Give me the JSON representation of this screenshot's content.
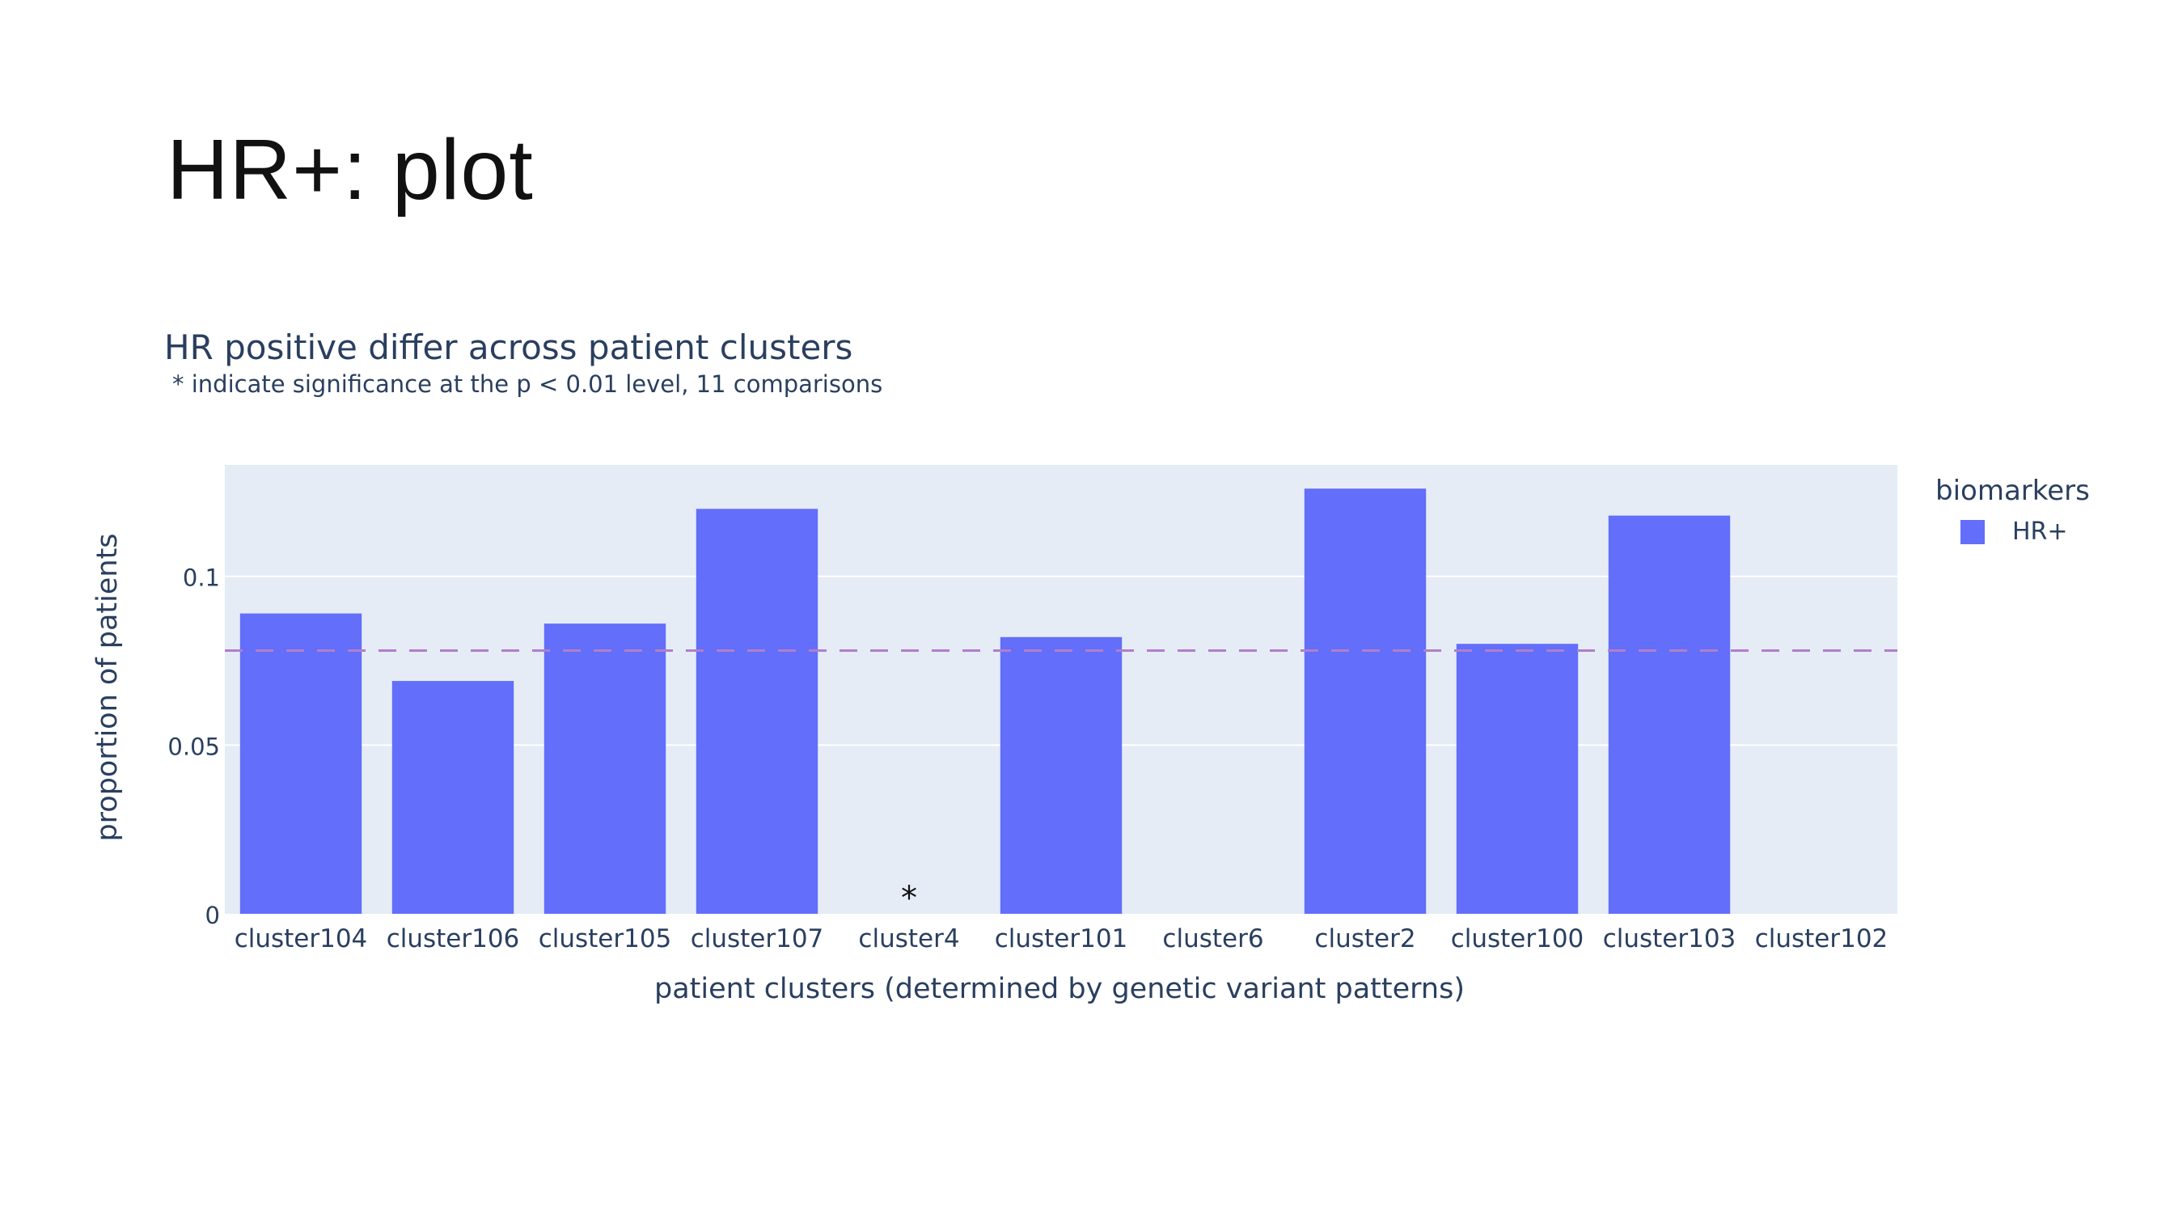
{
  "slide": {
    "title": "HR+: plot"
  },
  "chart_data": {
    "type": "bar",
    "title": "HR positive differ across patient clusters",
    "subtitle": "* indicate significance at the p < 0.01 level, 11 comparisons",
    "xlabel": "patient clusters (determined by genetic variant patterns)",
    "ylabel": "proportion of patients",
    "categories": [
      "cluster104",
      "cluster106",
      "cluster105",
      "cluster107",
      "cluster4",
      "cluster101",
      "cluster6",
      "cluster2",
      "cluster100",
      "cluster103",
      "cluster102"
    ],
    "series": [
      {
        "name": "HR+",
        "values": [
          0.089,
          0.069,
          0.086,
          0.12,
          0.0,
          0.082,
          0.0,
          0.126,
          0.08,
          0.118,
          0.0
        ],
        "color": "#636efa"
      }
    ],
    "significance_markers": [
      {
        "category": "cluster4",
        "label": "*"
      }
    ],
    "reference_line": {
      "y": 0.078,
      "style": "dashed",
      "color": "#b07fc9"
    },
    "ylim": [
      0,
      0.133
    ],
    "yticks": [
      {
        "value": 0,
        "label": "0"
      },
      {
        "value": 0.05,
        "label": "0.05"
      },
      {
        "value": 0.1,
        "label": "0.1"
      }
    ],
    "legend": {
      "title": "biomarkers",
      "position": "top-right",
      "items": [
        {
          "label": "HR+",
          "color": "#636efa"
        }
      ]
    },
    "grid": true,
    "plot_background": "#e5ecf6"
  }
}
